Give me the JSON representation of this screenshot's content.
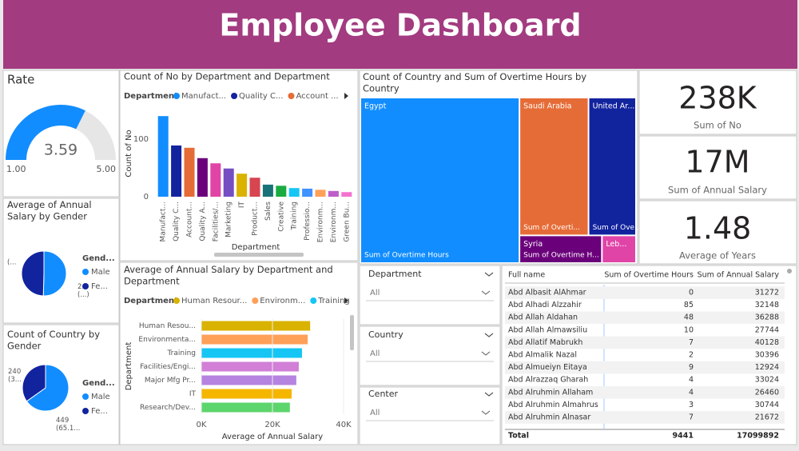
{
  "header": {
    "title": "Employee Dashboard"
  },
  "gauge": {
    "type": "gauge",
    "title": "Rate",
    "value": 3.59,
    "min": {
      "value": 1,
      "label": "1.00"
    },
    "max": {
      "value": 5,
      "label": "5.00"
    },
    "color": "#118DFF"
  },
  "pie_salary": {
    "type": "pie",
    "title": "Average of Annual Salary by Gender",
    "legend_title": "Gend...",
    "categories": [
      "Male",
      "Fe..."
    ],
    "values": [
      28400,
      27900
    ],
    "value_labels": [
      "2...\n(...)",
      "(..."
    ],
    "colors": [
      "#118DFF",
      "#12239E"
    ]
  },
  "pie_count": {
    "type": "pie",
    "title": "Count of Country by Gender",
    "legend_title": "Gend...",
    "categories": [
      "Male",
      "Fe..."
    ],
    "values": [
      449,
      240
    ],
    "value_labels": [
      "449\n(65.1...",
      "240\n(3..."
    ],
    "colors": [
      "#118DFF",
      "#12239E"
    ]
  },
  "bar_count": {
    "type": "bar",
    "title": "Count of No by Department and Department",
    "legend_title": "Department",
    "legend": [
      "Manufact...",
      "Quality C...",
      "Account ..."
    ],
    "x_label": "Department",
    "y_label": "Count of No",
    "categories": [
      "Manufact...",
      "Quality C...",
      "Account...",
      "Quality A...",
      "Facilities/...",
      "Marketing",
      "IT",
      "Product...",
      "Sales",
      "Creative",
      "Training",
      "Professio...",
      "Environm...",
      "Environm...",
      "Green Bu..."
    ],
    "values": [
      140,
      89,
      85,
      67,
      58,
      49,
      40,
      33,
      21,
      19,
      15,
      14,
      12,
      10,
      8
    ],
    "colors": [
      "#118DFF",
      "#12239E",
      "#E66C37",
      "#6B007B",
      "#E044A7",
      "#744EC2",
      "#D9B300",
      "#D64550",
      "#197278",
      "#1AAB40",
      "#15C6F4",
      "#4092FF",
      "#FFA058",
      "#BE5DC9",
      "#F472D0"
    ],
    "ylim": [
      0,
      145
    ],
    "yticks": [
      0,
      100
    ]
  },
  "bar_salary": {
    "type": "hbar",
    "title": "Average of Annual Salary by Department and Department",
    "legend_title": "Department",
    "legend": [
      "Human Resour...",
      "Environm...",
      "Training"
    ],
    "x_label": "Average of Annual Salary",
    "y_label": "Department",
    "categories": [
      "Human Resou...",
      "Environmenta...",
      "Training",
      "Facilities/Engi...",
      "Major Mfg Pr...",
      "IT",
      "Research/Dev..."
    ],
    "values": [
      30600,
      29900,
      28300,
      27400,
      26700,
      25400,
      24900
    ],
    "colors": [
      "#D9B300",
      "#FFA058",
      "#15C6F4",
      "#D17FD7",
      "#B583E0",
      "#F5B600",
      "#5DD56D"
    ],
    "xlim": [
      0,
      40000
    ],
    "xticks": [
      {
        "value": 0,
        "label": "0K"
      },
      {
        "value": 20000,
        "label": "20K"
      },
      {
        "value": 40000,
        "label": "40K"
      }
    ]
  },
  "treemap": {
    "type": "treemap",
    "title": "Count of Country and Sum of Overtime Hours by Country",
    "categories": [
      "Egypt",
      "Saudi Arabia",
      "United Ar...",
      "Syria",
      "Leb..."
    ],
    "values": [
      400,
      146,
      97,
      33,
      13
    ],
    "sub_labels": [
      "Sum of Overtime Hours",
      "Sum of Overti...",
      "Sum of Ove...",
      "Sum of Overtime H...",
      null
    ],
    "colors": [
      "#118DFF",
      "#E66C37",
      "#12239E",
      "#6B007B",
      "#E044A7"
    ]
  },
  "cards": [
    {
      "value": "238K",
      "label": "Sum of No"
    },
    {
      "value": "17M",
      "label": "Sum of Annual Salary"
    },
    {
      "value": "1.48",
      "label": "Average of Years"
    }
  ],
  "slicers": [
    {
      "title": "Department",
      "selection": "All"
    },
    {
      "title": "Country",
      "selection": "All"
    },
    {
      "title": "Center",
      "selection": "All"
    }
  ],
  "table": {
    "columns": [
      "Full name",
      "Sum of Overtime Hours",
      "Sum of Annual Salary"
    ],
    "rows": [
      [
        "Abd Albasit AlAhmar",
        0,
        31272
      ],
      [
        "Abd Alhadi Alzzahir",
        85,
        32148
      ],
      [
        "Abd Allah Aldahan",
        48,
        36288
      ],
      [
        "Abd Allah Almawsiliu",
        10,
        27744
      ],
      [
        "Abd Allatif Mabrukh",
        7,
        40128
      ],
      [
        "Abd Almalik Nazal",
        2,
        30396
      ],
      [
        "Abd Almueiyn Eitaya",
        9,
        12924
      ],
      [
        "Abd Alrazzaq Gharah",
        4,
        33024
      ],
      [
        "Abd Alruhmin Allaham",
        4,
        26460
      ],
      [
        "Abd Alruhmin Almahrus",
        3,
        30744
      ],
      [
        "Abd Alruhmin Alnasar",
        7,
        21672
      ]
    ],
    "total": [
      "Total",
      9441,
      17099892
    ]
  }
}
